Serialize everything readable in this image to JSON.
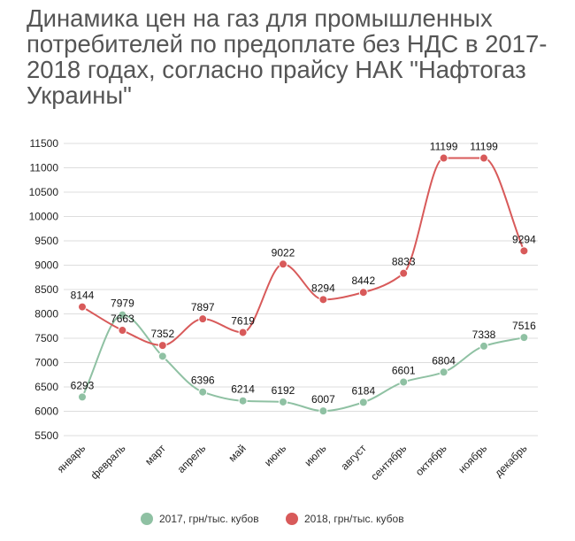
{
  "chart_data": {
    "type": "line",
    "title": "Динамика цен на газ для промышленных потребителей по предоплате без НДС в 2017-2018 годах, согласно прайсу НАК \"Нафтогаз Украины\"",
    "categories": [
      "январь",
      "февраль",
      "март",
      "апрель",
      "май",
      "июнь",
      "июль",
      "август",
      "сентябрь",
      "октябрь",
      "ноябрь",
      "декабрь"
    ],
    "series": [
      {
        "name": "2017, грн/тыс. кубов",
        "color": "#8fc1a3",
        "values": [
          6293,
          7979,
          7130,
          6396,
          6214,
          6192,
          6007,
          6184,
          6601,
          6804,
          7338,
          7516
        ],
        "labels": [
          "6293",
          "7979",
          "",
          "6396",
          "6214",
          "6192",
          "6007",
          "6184",
          "6601",
          "6804",
          "7338",
          "7516"
        ]
      },
      {
        "name": "2018, грн/тыс. кубов",
        "color": "#d85a5a",
        "values": [
          8144,
          7663,
          7352,
          7897,
          7619,
          9022,
          8294,
          8442,
          8833,
          11199,
          11199,
          9294
        ],
        "labels": [
          "8144",
          "7663",
          "7352",
          "7897",
          "7619",
          "9022",
          "8294",
          "8442",
          "8833",
          "11199",
          "11199",
          "9294"
        ]
      }
    ],
    "yticks": [
      "5500",
      "6000",
      "6500",
      "7000",
      "7500",
      "8000",
      "8500",
      "9000",
      "9500",
      "10000",
      "10500",
      "11000",
      "11500"
    ],
    "ylim": [
      5500,
      11500
    ],
    "grid": true,
    "legend": "bottom-center"
  }
}
